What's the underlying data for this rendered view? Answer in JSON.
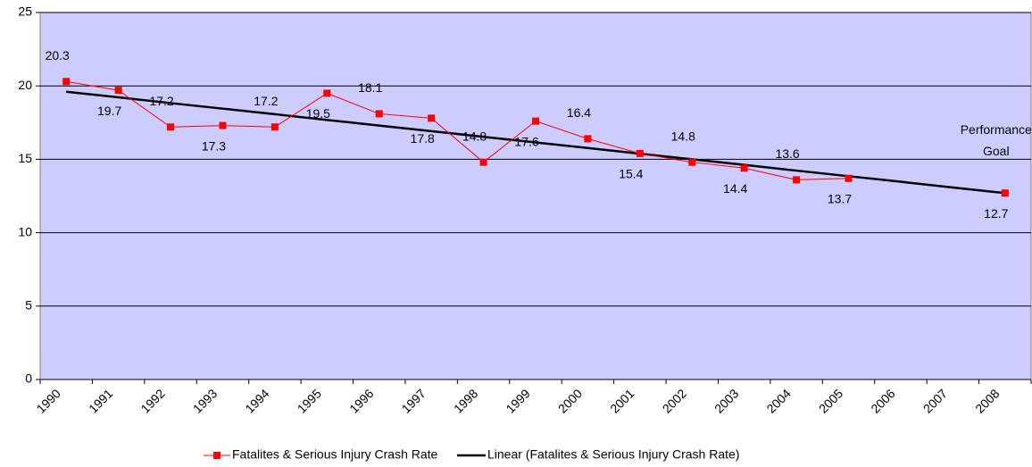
{
  "chart_data": {
    "type": "line",
    "categories": [
      "1990",
      "1991",
      "1992",
      "1993",
      "1994",
      "1995",
      "1996",
      "1997",
      "1998",
      "1999",
      "2000",
      "2001",
      "2002",
      "2003",
      "2004",
      "2005",
      "2006",
      "2007",
      "2008"
    ],
    "series": [
      {
        "name": "Fatalites & Serious Injury Crash Rate",
        "color": "#ff0000",
        "marker": "square",
        "values": [
          20.3,
          19.7,
          17.2,
          17.3,
          17.2,
          19.5,
          18.1,
          17.8,
          14.8,
          17.6,
          16.4,
          15.4,
          14.8,
          14.4,
          13.6,
          13.7,
          null,
          null,
          12.7
        ]
      },
      {
        "name": "Linear (Fatalites & Serious Injury Crash Rate)",
        "color": "#000000",
        "values": [
          19.6,
          19.22,
          18.83,
          18.45,
          18.07,
          17.68,
          17.3,
          16.92,
          16.53,
          16.15,
          15.77,
          15.38,
          15.0,
          14.62,
          14.23,
          13.85,
          13.47,
          13.08,
          12.7
        ]
      }
    ],
    "annotation": [
      "Performance",
      "Goal"
    ],
    "ylim": [
      0,
      25
    ],
    "yticks": [
      0,
      5,
      10,
      15,
      20,
      25
    ],
    "grid": true,
    "plot_background": "#ccccff",
    "legend": "bottom"
  }
}
